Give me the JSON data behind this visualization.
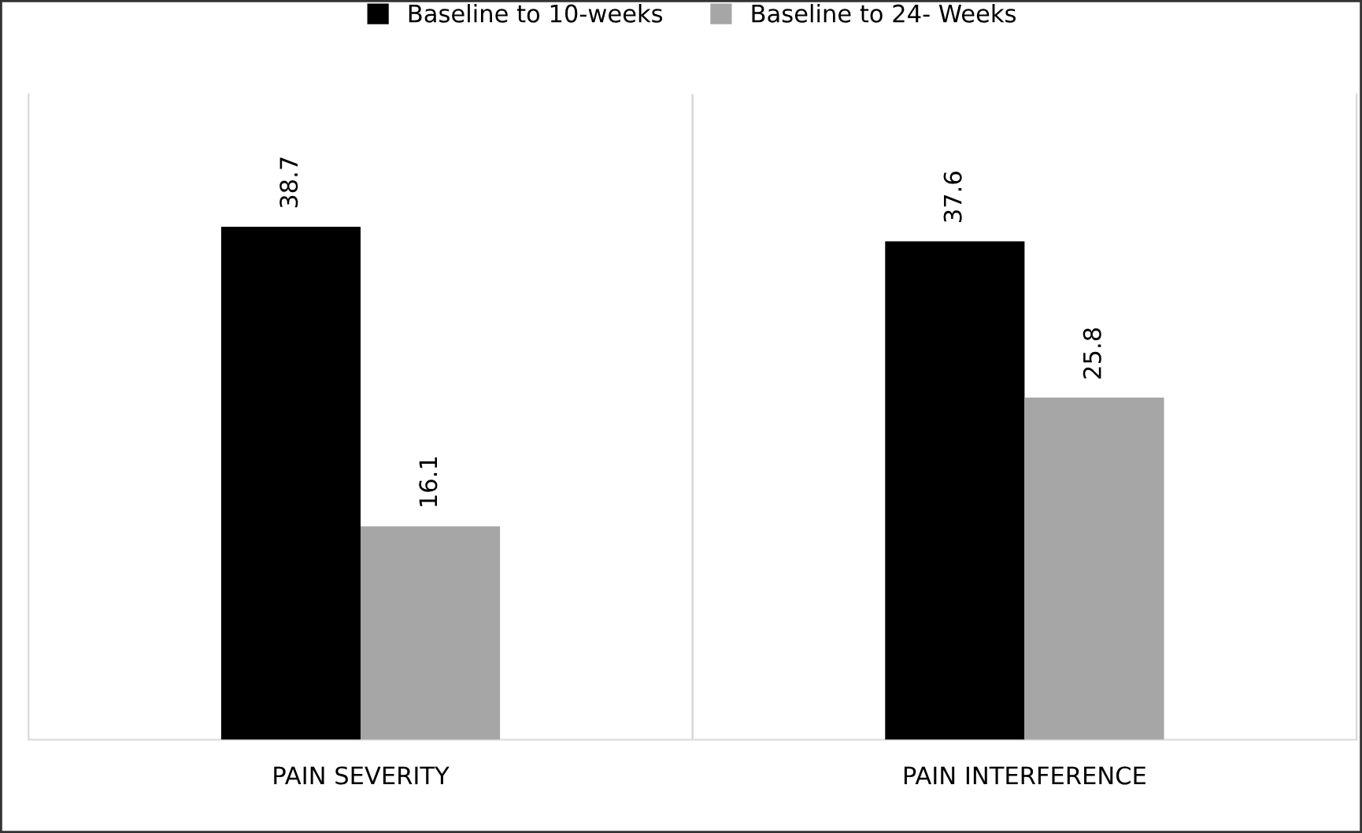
{
  "chart_data": {
    "type": "bar",
    "categories": [
      "PAIN SEVERITY",
      "PAIN INTERFERENCE"
    ],
    "series": [
      {
        "name": "Baseline to 10-weeks",
        "color": "#000000",
        "values": [
          38.7,
          37.6
        ]
      },
      {
        "name": "Baseline to 24- Weeks",
        "color": "#a6a6a6",
        "values": [
          16.1,
          25.8
        ]
      }
    ],
    "ylim": [
      0,
      48.7
    ],
    "tick_labels": "x",
    "data_labels": true,
    "grid": "x",
    "legend": "top"
  }
}
